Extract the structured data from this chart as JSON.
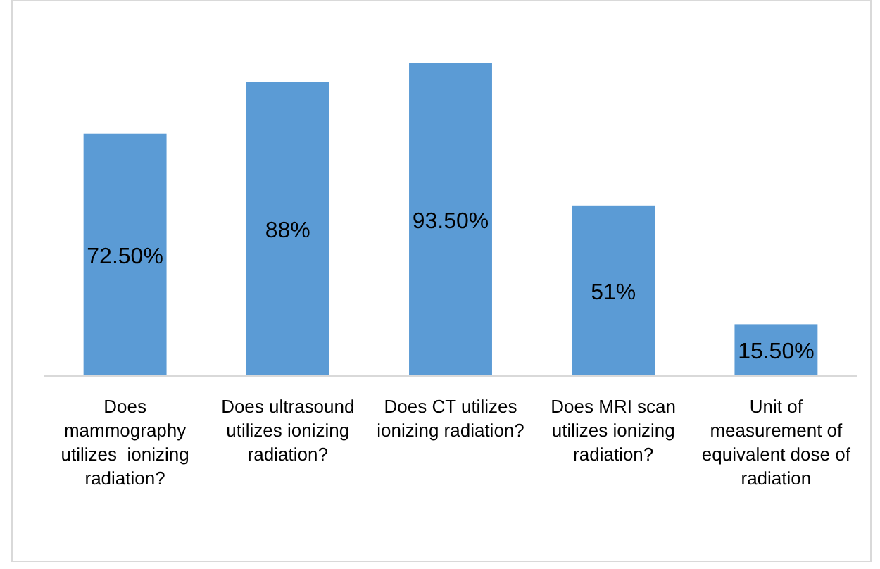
{
  "chart_data": {
    "type": "bar",
    "categories": [
      "Does mammography utilizes  ionizing radiation?",
      "Does ultrasound utilizes ionizing radiation?",
      "Does CT utilizes ionizing radiation?",
      "Does MRI scan utilizes ionizing radiation?",
      "Unit of measurement of equivalent dose of radiation"
    ],
    "values": [
      72.5,
      88,
      93.5,
      51,
      15.5
    ],
    "value_labels": [
      "72.50%",
      "88%",
      "93.50%",
      "51%",
      "15.50%"
    ],
    "color": "#5b9bd5"
  }
}
